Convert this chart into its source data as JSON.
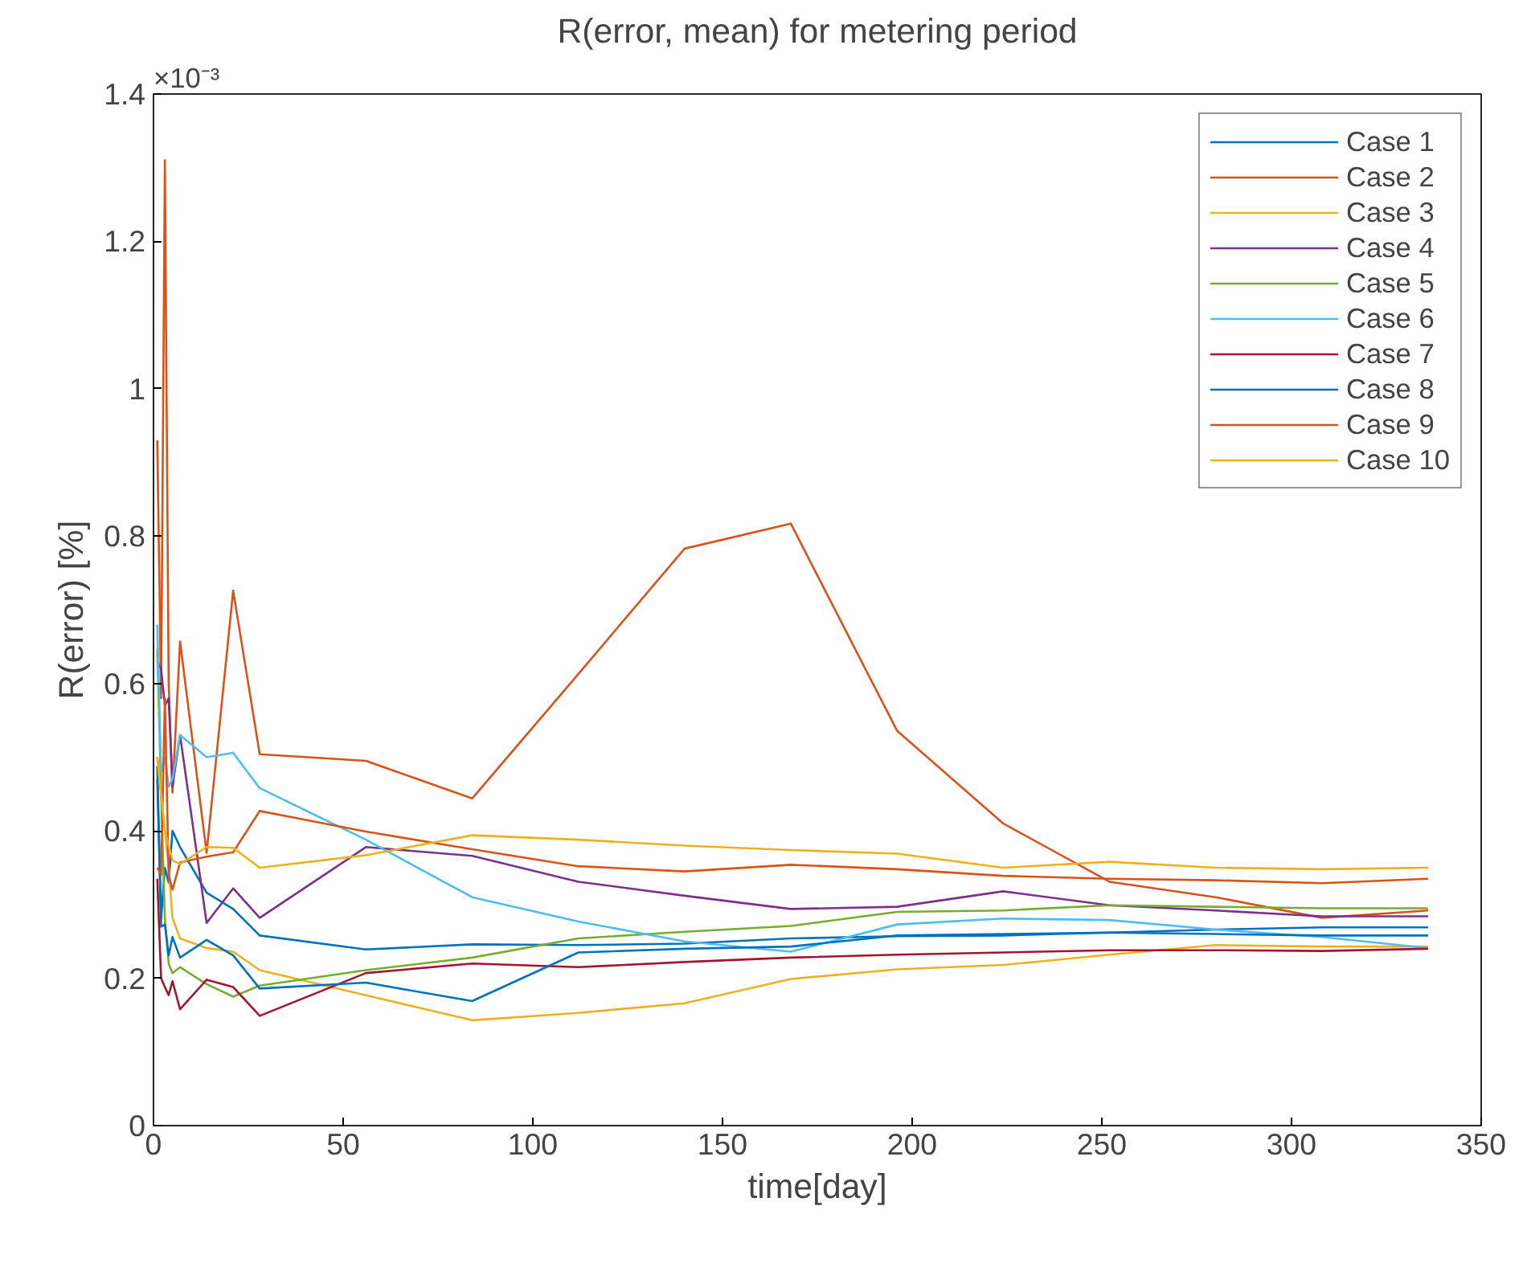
{
  "chart_data": {
    "type": "line",
    "title": "R(error, mean) for metering period",
    "xlabel": "time[day]",
    "ylabel": "R(error) [%]",
    "annotations": [
      "×10⁻³"
    ],
    "x": [
      1,
      2,
      3,
      4,
      5,
      7,
      14,
      21,
      28,
      56,
      84,
      112,
      140,
      168,
      196,
      224,
      252,
      280,
      308,
      336
    ],
    "xlim": [
      0,
      350
    ],
    "xticks": [
      0,
      50,
      100,
      150,
      200,
      250,
      300,
      350
    ],
    "ylim": [
      0,
      1.4
    ],
    "yticks": [
      0,
      0.2,
      0.4,
      0.6,
      0.8,
      1,
      1.2,
      1.4
    ],
    "grid": false,
    "legend": "top right",
    "line_style": "solid",
    "marker": "none",
    "series": [
      {
        "name": "Case 1",
        "color": "#0072bd",
        "values": [
          0.488,
          0.28,
          0.35,
          0.33,
          0.4,
          0.378,
          0.316,
          0.294,
          0.258,
          0.239,
          0.246,
          0.245,
          0.247,
          0.254,
          0.257,
          0.258,
          0.262,
          0.266,
          0.269,
          0.269
        ]
      },
      {
        "name": "Case 2",
        "color": "#d95319",
        "values": [
          0.93,
          0.58,
          1.31,
          0.6,
          0.452,
          0.657,
          0.37,
          0.726,
          0.504,
          0.495,
          0.444,
          0.613,
          0.783,
          0.817,
          0.536,
          0.41,
          0.331,
          0.31,
          0.282,
          0.292
        ]
      },
      {
        "name": "Case 3",
        "color": "#edb120",
        "values": [
          0.5,
          0.45,
          0.4,
          0.35,
          0.282,
          0.254,
          0.241,
          0.236,
          0.211,
          0.177,
          0.143,
          0.153,
          0.166,
          0.199,
          0.212,
          0.218,
          0.232,
          0.245,
          0.243,
          0.243
        ]
      },
      {
        "name": "Case 4",
        "color": "#7e2f8e",
        "values": [
          0.63,
          0.62,
          0.57,
          0.58,
          0.46,
          0.53,
          0.275,
          0.322,
          0.282,
          0.378,
          0.366,
          0.331,
          0.312,
          0.294,
          0.297,
          0.318,
          0.299,
          0.292,
          0.284,
          0.284
        ]
      },
      {
        "name": "Case 5",
        "color": "#77ac30",
        "values": [
          0.647,
          0.45,
          0.28,
          0.22,
          0.207,
          0.215,
          0.192,
          0.175,
          0.19,
          0.211,
          0.228,
          0.254,
          0.263,
          0.271,
          0.29,
          0.292,
          0.299,
          0.297,
          0.295,
          0.295
        ]
      },
      {
        "name": "Case 6",
        "color": "#4dbeee",
        "values": [
          0.68,
          0.48,
          0.5,
          0.46,
          0.47,
          0.53,
          0.5,
          0.506,
          0.458,
          0.388,
          0.31,
          0.277,
          0.25,
          0.236,
          0.273,
          0.281,
          0.279,
          0.266,
          0.256,
          0.241
        ]
      },
      {
        "name": "Case 7",
        "color": "#a2142f",
        "values": [
          0.335,
          0.2,
          0.188,
          0.177,
          0.196,
          0.158,
          0.198,
          0.188,
          0.149,
          0.207,
          0.22,
          0.215,
          0.222,
          0.228,
          0.232,
          0.235,
          0.238,
          0.238,
          0.237,
          0.24
        ]
      },
      {
        "name": "Case 8",
        "color": "#0072bd",
        "values": [
          0.47,
          0.27,
          0.273,
          0.231,
          0.256,
          0.228,
          0.252,
          0.231,
          0.186,
          0.194,
          0.169,
          0.235,
          0.24,
          0.243,
          0.258,
          0.26,
          0.262,
          0.26,
          0.258,
          0.258
        ]
      },
      {
        "name": "Case 9",
        "color": "#d95319",
        "values": [
          0.35,
          0.34,
          0.58,
          0.34,
          0.32,
          0.357,
          0.365,
          0.371,
          0.427,
          0.399,
          0.375,
          0.352,
          0.345,
          0.354,
          0.348,
          0.339,
          0.335,
          0.333,
          0.329,
          0.335
        ]
      },
      {
        "name": "Case 10",
        "color": "#edb120",
        "values": [
          0.5,
          0.45,
          0.4,
          0.38,
          0.36,
          0.355,
          0.378,
          0.377,
          0.35,
          0.367,
          0.394,
          0.388,
          0.38,
          0.374,
          0.369,
          0.35,
          0.358,
          0.35,
          0.348,
          0.35
        ]
      }
    ]
  }
}
